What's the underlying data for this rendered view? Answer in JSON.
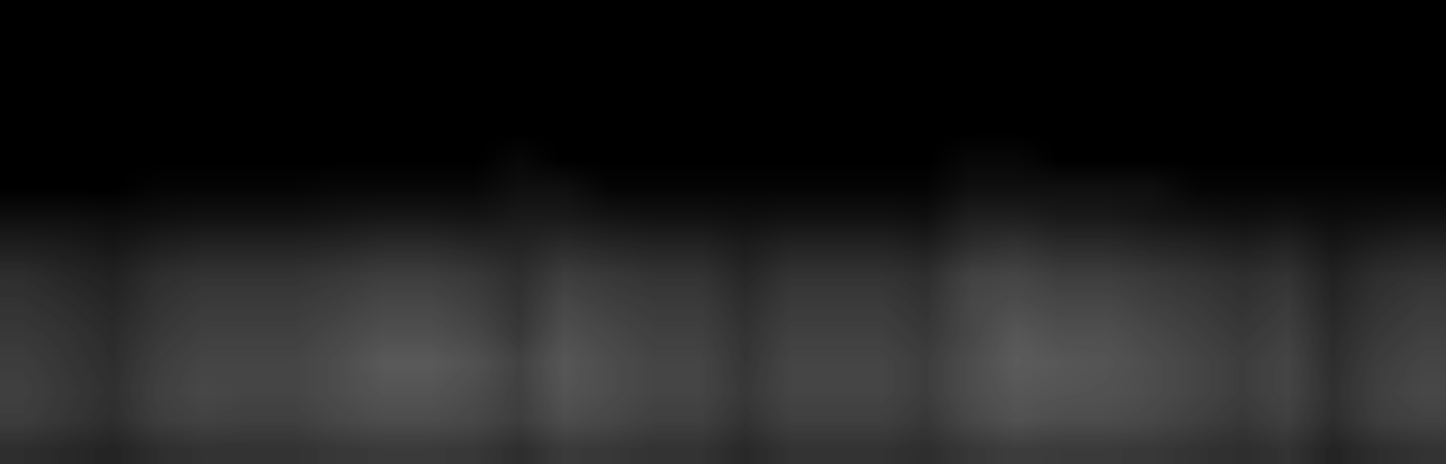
{
  "chart_data": {
    "type": "heatmap",
    "tick_labels": false,
    "color": "gray",
    "cell_range": [
      0,
      1
    ],
    "cells": [
      [
        0,
        0,
        0,
        0,
        0,
        0,
        0,
        0,
        0,
        0,
        0,
        0,
        0,
        0,
        0,
        0,
        0,
        0,
        0,
        0,
        0,
        0,
        0,
        0,
        0,
        0,
        0,
        0,
        0,
        0,
        0,
        0
      ],
      [
        0,
        0,
        0,
        0,
        0,
        0,
        0,
        0,
        0,
        0,
        0,
        0,
        0,
        0,
        0,
        0,
        0,
        0,
        0,
        0,
        0,
        0,
        0,
        0,
        0,
        0,
        0,
        0,
        0,
        0,
        0,
        0
      ],
      [
        0,
        0,
        0,
        0,
        0,
        0,
        0,
        0,
        0,
        0,
        0,
        0,
        0,
        0,
        0,
        0,
        0,
        0,
        0,
        0,
        0,
        0,
        0,
        0,
        0,
        0,
        0,
        0,
        0,
        0,
        0,
        0
      ],
      [
        0,
        0,
        0,
        0,
        0,
        0,
        0,
        0,
        0,
        0,
        0,
        0,
        0,
        0,
        0,
        0,
        0,
        0,
        0,
        0,
        0,
        0,
        0,
        0,
        0,
        0,
        0,
        0,
        0,
        0,
        0,
        0
      ],
      [
        0,
        0,
        0,
        0,
        0,
        0,
        0,
        0,
        0,
        0,
        0,
        0,
        0,
        0,
        0,
        0,
        0,
        0,
        0,
        0,
        0,
        0,
        0,
        0,
        0,
        0,
        0,
        0,
        0,
        0,
        0,
        0
      ],
      [
        0,
        0,
        0,
        0,
        0,
        0,
        0,
        0,
        0,
        0,
        0,
        0.03,
        0,
        0,
        0,
        0,
        0,
        0,
        0,
        0,
        0,
        0.03,
        0.03,
        0,
        0,
        0,
        0,
        0,
        0,
        0,
        0,
        0
      ],
      [
        0,
        0,
        0,
        0.02,
        0.02,
        0.02,
        0.02,
        0.03,
        0.03,
        0.03,
        0.03,
        0.06,
        0.06,
        0.02,
        0.02,
        0.02,
        0.02,
        0.02,
        0.02,
        0.02,
        0.02,
        0.06,
        0.06,
        0.06,
        0.06,
        0.06,
        0.02,
        0.02,
        0.02,
        0.02,
        0.02,
        0.02
      ],
      [
        0.06,
        0.06,
        0.05,
        0.06,
        0.07,
        0.07,
        0.07,
        0.08,
        0.09,
        0.09,
        0.08,
        0.1,
        0.1,
        0.08,
        0.07,
        0.07,
        0.06,
        0.07,
        0.07,
        0.07,
        0.06,
        0.12,
        0.12,
        0.1,
        0.1,
        0.08,
        0.07,
        0.06,
        0.07,
        0.05,
        0.06,
        0.07
      ],
      [
        0.12,
        0.11,
        0.09,
        0.12,
        0.14,
        0.14,
        0.14,
        0.15,
        0.17,
        0.17,
        0.15,
        0.14,
        0.17,
        0.15,
        0.14,
        0.14,
        0.11,
        0.14,
        0.14,
        0.14,
        0.12,
        0.18,
        0.2,
        0.17,
        0.17,
        0.15,
        0.14,
        0.12,
        0.14,
        0.09,
        0.12,
        0.14
      ],
      [
        0.18,
        0.15,
        0.13,
        0.18,
        0.2,
        0.2,
        0.2,
        0.22,
        0.24,
        0.24,
        0.22,
        0.18,
        0.24,
        0.22,
        0.2,
        0.2,
        0.15,
        0.2,
        0.2,
        0.2,
        0.18,
        0.26,
        0.27,
        0.24,
        0.24,
        0.22,
        0.2,
        0.18,
        0.2,
        0.13,
        0.18,
        0.2
      ],
      [
        0.2,
        0.18,
        0.15,
        0.2,
        0.23,
        0.23,
        0.23,
        0.25,
        0.28,
        0.28,
        0.25,
        0.2,
        0.28,
        0.25,
        0.23,
        0.23,
        0.18,
        0.23,
        0.23,
        0.23,
        0.2,
        0.28,
        0.3,
        0.28,
        0.28,
        0.25,
        0.23,
        0.2,
        0.23,
        0.15,
        0.2,
        0.23
      ],
      [
        0.22,
        0.2,
        0.17,
        0.22,
        0.25,
        0.25,
        0.25,
        0.28,
        0.31,
        0.31,
        0.28,
        0.22,
        0.31,
        0.28,
        0.25,
        0.25,
        0.2,
        0.25,
        0.25,
        0.25,
        0.22,
        0.28,
        0.34,
        0.31,
        0.31,
        0.28,
        0.25,
        0.22,
        0.25,
        0.17,
        0.22,
        0.25
      ],
      [
        0.24,
        0.21,
        0.18,
        0.24,
        0.27,
        0.27,
        0.27,
        0.3,
        0.35,
        0.35,
        0.32,
        0.26,
        0.34,
        0.3,
        0.27,
        0.27,
        0.21,
        0.27,
        0.27,
        0.27,
        0.24,
        0.3,
        0.36,
        0.34,
        0.33,
        0.3,
        0.27,
        0.24,
        0.27,
        0.18,
        0.24,
        0.27
      ],
      [
        0.25,
        0.22,
        0.19,
        0.25,
        0.28,
        0.27,
        0.27,
        0.3,
        0.33,
        0.33,
        0.3,
        0.25,
        0.33,
        0.3,
        0.27,
        0.27,
        0.22,
        0.27,
        0.27,
        0.27,
        0.24,
        0.3,
        0.34,
        0.33,
        0.32,
        0.3,
        0.27,
        0.24,
        0.27,
        0.19,
        0.25,
        0.28
      ],
      [
        0.24,
        0.21,
        0.18,
        0.24,
        0.26,
        0.25,
        0.25,
        0.28,
        0.3,
        0.3,
        0.28,
        0.24,
        0.3,
        0.28,
        0.25,
        0.25,
        0.2,
        0.25,
        0.25,
        0.25,
        0.22,
        0.28,
        0.32,
        0.3,
        0.3,
        0.28,
        0.25,
        0.22,
        0.25,
        0.18,
        0.24,
        0.26
      ],
      [
        0.18,
        0.16,
        0.14,
        0.18,
        0.2,
        0.2,
        0.2,
        0.22,
        0.23,
        0.23,
        0.22,
        0.18,
        0.23,
        0.22,
        0.2,
        0.2,
        0.16,
        0.2,
        0.2,
        0.2,
        0.18,
        0.22,
        0.24,
        0.23,
        0.23,
        0.22,
        0.2,
        0.18,
        0.2,
        0.14,
        0.18,
        0.2
      ]
    ]
  }
}
